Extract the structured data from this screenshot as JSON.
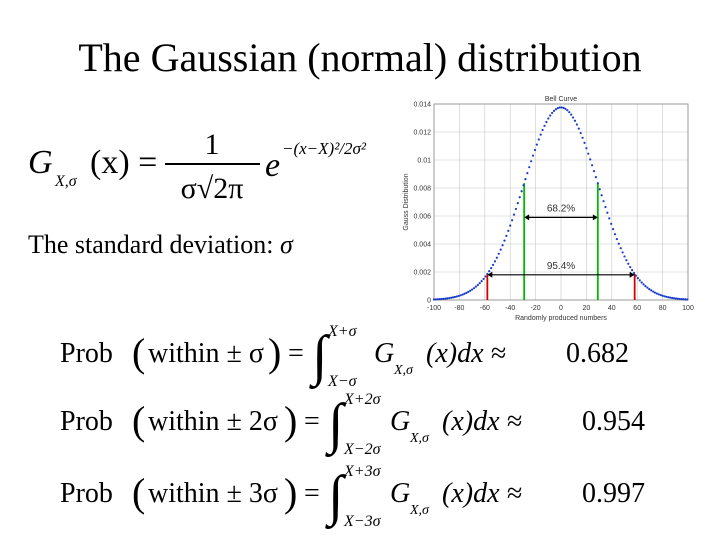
{
  "slide": {
    "title": "The Gaussian (normal) distribution",
    "std_label": "The standard deviation:",
    "std_symbol": "σ"
  },
  "gaussian_formula": {
    "lhs": "G",
    "sub": "X,σ",
    "arg": "(x) =",
    "numerator": "1",
    "denominator": "σ√2π",
    "base": "e",
    "exponent": "−(x−X)²/2σ²"
  },
  "probabilities": [
    {
      "prefix": "Prob",
      "within": "within ± σ",
      "upper": "X+σ",
      "lower": "X−σ",
      "integrand": "G",
      "sub": "X,σ",
      "arg": "(x)dx ≈",
      "value": "0.682"
    },
    {
      "prefix": "Prob",
      "within": "within ± 2σ",
      "upper": "X+2σ",
      "lower": "X−2σ",
      "integrand": "G",
      "sub": "X,σ",
      "arg": "(x)dx ≈",
      "value": "0.954"
    },
    {
      "prefix": "Prob",
      "within": "within ± 3σ",
      "upper": "X+3σ",
      "lower": "X−3σ",
      "integrand": "G",
      "sub": "X,σ",
      "arg": "(x)dx ≈",
      "value": "0.997"
    }
  ],
  "chart_data": {
    "type": "line",
    "title": "Bell Curve",
    "xlabel": "Randomly produced numbers",
    "ylabel": "Gauss Distribution",
    "xlim": [
      -100,
      100
    ],
    "ylim": [
      0,
      0.014
    ],
    "x_ticks": [
      -100,
      -80,
      -60,
      -40,
      -20,
      0,
      20,
      40,
      60,
      80,
      100
    ],
    "y_ticks": [
      0,
      0.002,
      0.004,
      0.006,
      0.008,
      0.01,
      0.012,
      0.014
    ],
    "y_tick_labels": [
      "0",
      "0.002",
      "0.004",
      "0.006",
      "0.008",
      "0.01",
      "0.012",
      "0.014"
    ],
    "mean": 0,
    "sigma": 29,
    "series": [
      {
        "name": "",
        "color": "#1a3cc8"
      }
    ],
    "annotations": [
      {
        "text": "68.2%",
        "from": -29,
        "to": 29,
        "y": 0.0059,
        "color": "#00bb00"
      },
      {
        "text": "95.4%",
        "from": -58,
        "to": 58,
        "y": 0.0018,
        "color": "#d40000"
      }
    ],
    "grid": true
  },
  "colors": {
    "curve": "#1a3cc8",
    "one_sigma": "#00bb00",
    "two_sigma": "#d40000",
    "grid": "#c8c8c8"
  }
}
